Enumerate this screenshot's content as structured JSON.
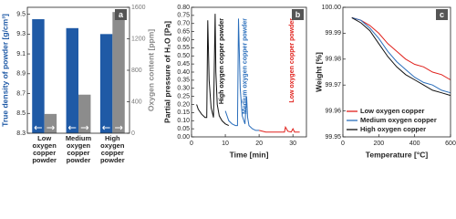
{
  "chart_data": [
    {
      "type": "bar",
      "panel_label": "a",
      "ylabel": "True density of powder [g/cm³]",
      "y2label": "Oxygen content [ppm]",
      "categories": [
        "Low oxygen copper powder",
        "Medium oxygen copper powder",
        "High oxygen copper powder"
      ],
      "series": [
        {
          "color": "#1f5aa6",
          "values": [
            9.45,
            9.36,
            9.3
          ]
        },
        {
          "color": "#8c8c8c",
          "axis": "y2",
          "values": [
            245,
            490,
            1540
          ]
        }
      ],
      "ylim": [
        8.3,
        9.57
      ],
      "yticks": [
        8.3,
        8.5,
        8.7,
        8.9,
        9.1,
        9.3,
        9.5
      ],
      "y2lim": [
        0,
        1600
      ],
      "y2ticks": [
        0,
        400,
        800,
        1200,
        1600
      ]
    },
    {
      "type": "line",
      "panel_label": "b",
      "xlabel": "Time [min]",
      "ylabel": "Partial pressure of H₂O [Pa]",
      "series": [
        {
          "name": "High oxygen copper powder",
          "color": "#111111",
          "x": [
            1.5,
            2,
            3,
            4,
            4.5,
            4.8,
            5.2,
            5.8,
            6.5,
            7,
            7.2,
            7.6,
            8.2,
            9,
            10,
            11
          ],
          "values": [
            0.2,
            0.17,
            0.14,
            0.12,
            0.12,
            0.72,
            0.35,
            0.18,
            0.12,
            0.76,
            0.4,
            0.2,
            0.13,
            0.1,
            0.08,
            0.07
          ]
        },
        {
          "name": "Medium oxygen copper powder",
          "color": "#2a6ebb",
          "x": [
            10,
            11,
            12,
            13,
            13.6,
            13.9,
            14.4,
            15,
            15.8,
            16.3,
            16.6,
            17,
            18,
            19,
            20
          ],
          "values": [
            0.16,
            0.1,
            0.08,
            0.07,
            0.07,
            0.73,
            0.3,
            0.13,
            0.08,
            0.25,
            0.12,
            0.07,
            0.05,
            0.04,
            0.04
          ]
        },
        {
          "name": "Low oxygen copper powder",
          "color": "#e0201b",
          "x": [
            20,
            22,
            24,
            26,
            27.5,
            27.8,
            28.5,
            29.5,
            30,
            30.5,
            31,
            32
          ],
          "values": [
            0.04,
            0.03,
            0.03,
            0.03,
            0.03,
            0.06,
            0.035,
            0.03,
            0.05,
            0.03,
            0.03,
            0.03
          ]
        }
      ],
      "xlim": [
        0,
        34
      ],
      "xticks": [
        0,
        10,
        20,
        30
      ],
      "ylim": [
        0,
        0.8
      ],
      "yticks": [
        {
          "value": 0,
          "label": "0.00"
        },
        0.05,
        {
          "value": 0.1,
          "label": "0.10"
        },
        0.15,
        {
          "value": 0.2,
          "label": "0.20"
        },
        0.25,
        {
          "value": 0.3,
          "label": "0.30"
        },
        0.35,
        {
          "value": 0.4,
          "label": "0.40"
        },
        0.45,
        {
          "value": 0.5,
          "label": "0.50"
        },
        0.55,
        {
          "value": 0.6,
          "label": "0.60"
        },
        0.65,
        {
          "value": 0.7,
          "label": "0.70"
        },
        0.75,
        {
          "value": 0.8,
          "label": "0.80"
        }
      ]
    },
    {
      "type": "line",
      "panel_label": "c",
      "legend": "lower left",
      "xlabel": "Temperature [°C]",
      "ylabel": "Weight [%]",
      "series": [
        {
          "name": "Low oxygen copper",
          "color": "#e0201b",
          "x": [
            50,
            100,
            150,
            200,
            250,
            300,
            350,
            400,
            450,
            500,
            550,
            600
          ],
          "values": [
            99.996,
            99.995,
            99.993,
            99.99,
            99.986,
            99.983,
            99.98,
            99.978,
            99.977,
            99.975,
            99.974,
            99.972
          ]
        },
        {
          "name": "Medium oxygen copper",
          "color": "#2a6ebb",
          "x": [
            50,
            100,
            150,
            200,
            250,
            300,
            350,
            400,
            450,
            500,
            550,
            600
          ],
          "values": [
            99.996,
            99.995,
            99.992,
            99.988,
            99.983,
            99.979,
            99.976,
            99.973,
            99.971,
            99.97,
            99.968,
            99.967
          ]
        },
        {
          "name": "High oxygen copper",
          "color": "#111111",
          "x": [
            50,
            100,
            150,
            200,
            250,
            300,
            350,
            400,
            450,
            500,
            550,
            600
          ],
          "values": [
            99.996,
            99.994,
            99.991,
            99.986,
            99.981,
            99.977,
            99.974,
            99.972,
            99.97,
            99.968,
            99.967,
            99.966
          ]
        }
      ],
      "xlim": [
        0,
        600
      ],
      "xticks": [
        0,
        200,
        400,
        600
      ],
      "ylim": [
        99.95,
        100
      ],
      "yticks": [
        99.95,
        99.96,
        99.97,
        99.98,
        99.99,
        {
          "value": 100,
          "label": "100.00"
        }
      ]
    }
  ]
}
